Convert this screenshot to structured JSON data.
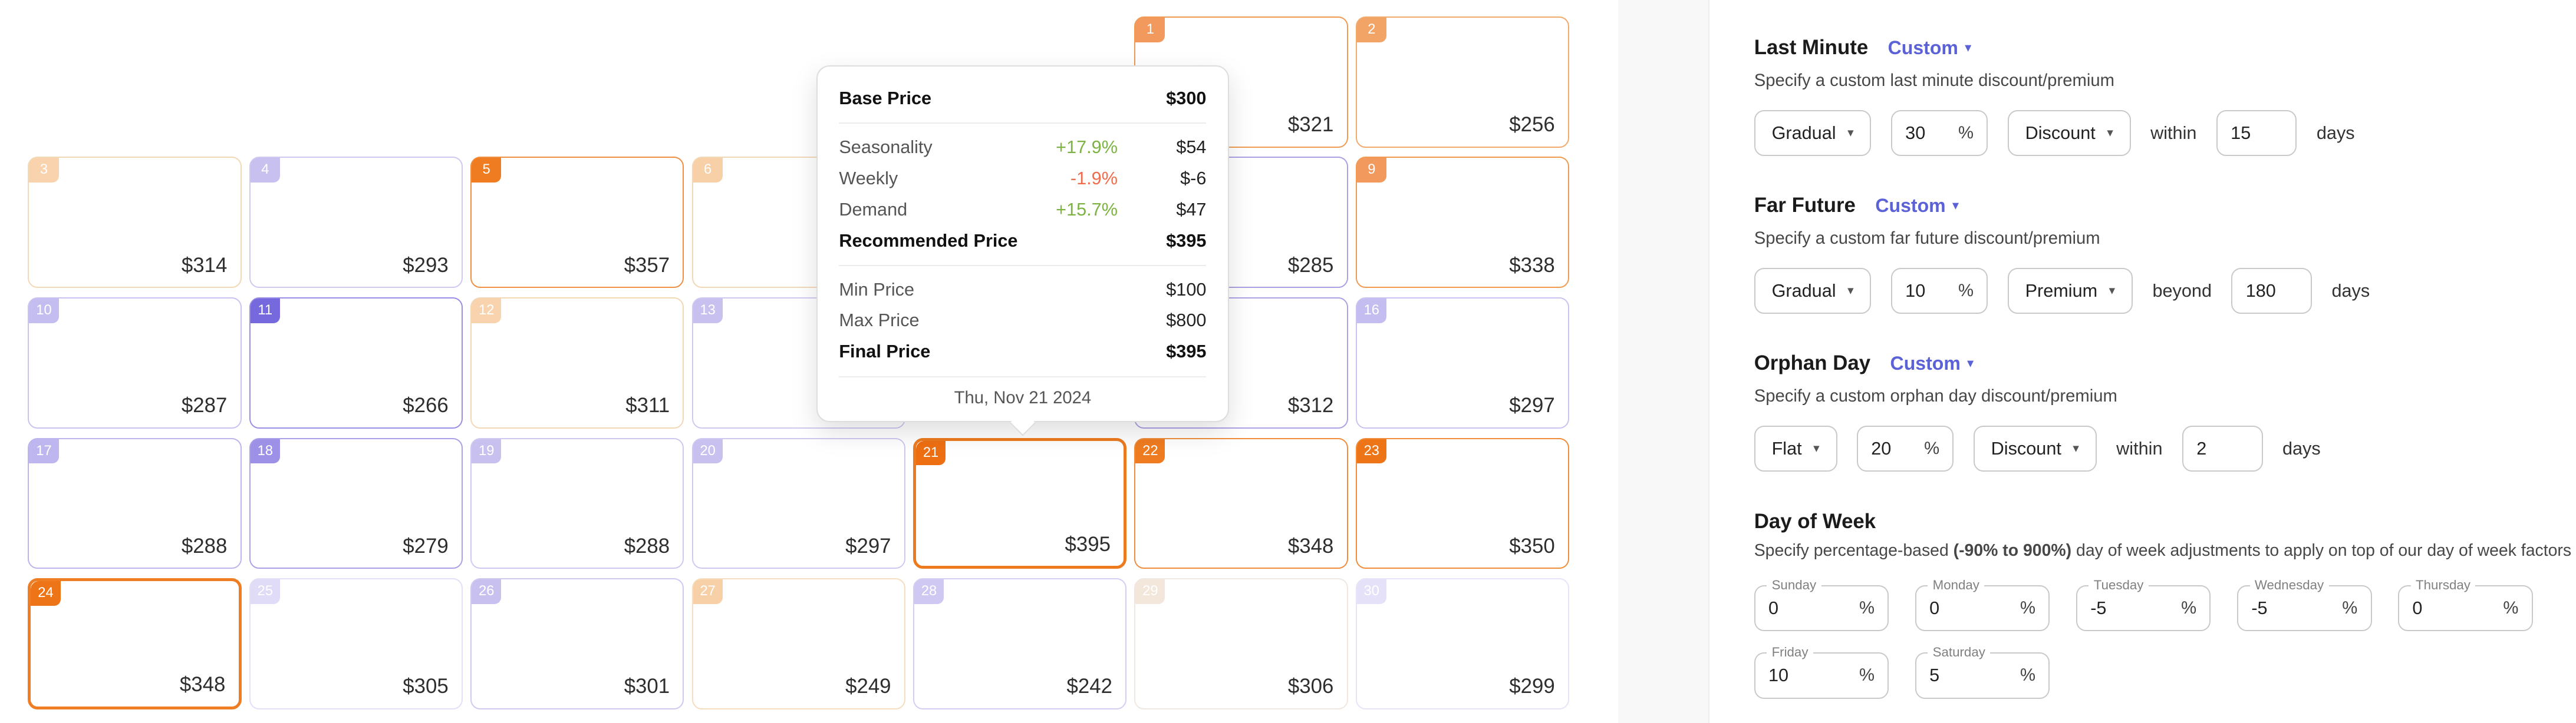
{
  "colors": {
    "accent": "#5b61d6",
    "positive": "#7cb342",
    "negative": "#ef6c4d",
    "price_text": "#2e2e2e",
    "panel_border": "#ececec",
    "control_border": "#c9c9c9"
  },
  "calendar": {
    "cells": [
      {
        "day": "1",
        "price": "$321",
        "row": 1,
        "col": 6,
        "badge": "#f2995d",
        "border": "#f09a52",
        "strong": false
      },
      {
        "day": "2",
        "price": "$256",
        "row": 1,
        "col": 7,
        "badge": "#f2a467",
        "border": "#f2a96c",
        "strong": false
      },
      {
        "day": "3",
        "price": "$314",
        "row": 2,
        "col": 1,
        "badge": "#f8d3ad",
        "border": "#f3d8b6",
        "strong": false
      },
      {
        "day": "4",
        "price": "$293",
        "row": 2,
        "col": 2,
        "badge": "#c8c1f0",
        "border": "#cfc9f2",
        "strong": false
      },
      {
        "day": "5",
        "price": "$357",
        "row": 2,
        "col": 3,
        "badge": "#ef7c20",
        "border": "#f08e41",
        "strong": false
      },
      {
        "day": "6",
        "price": "",
        "row": 2,
        "col": 4,
        "badge": "#f8d0a7",
        "border": "#f3d8b6",
        "strong": false
      },
      {
        "day": "8",
        "price": "$285",
        "row": 2,
        "col": 6,
        "badge": "#b3aae9",
        "border": "#a9a0e4",
        "strong": false
      },
      {
        "day": "9",
        "price": "$338",
        "row": 2,
        "col": 7,
        "badge": "#f2995d",
        "border": "#f09a52",
        "strong": false
      },
      {
        "day": "10",
        "price": "$287",
        "row": 3,
        "col": 1,
        "badge": "#c4bdef",
        "border": "#c9c3f1",
        "strong": false
      },
      {
        "day": "11",
        "price": "$266",
        "row": 3,
        "col": 2,
        "badge": "#7669dd",
        "border": "#998ee5",
        "strong": false
      },
      {
        "day": "12",
        "price": "$311",
        "row": 3,
        "col": 3,
        "badge": "#f8d3ad",
        "border": "#f3d8b6",
        "strong": false
      },
      {
        "day": "13",
        "price": "",
        "row": 3,
        "col": 4,
        "badge": "#c8c1f0",
        "border": "#cfc9f2",
        "strong": false
      },
      {
        "day": "15",
        "price": "$312",
        "row": 3,
        "col": 6,
        "badge": "#b3aae9",
        "border": "#aba2e5",
        "strong": false
      },
      {
        "day": "16",
        "price": "$297",
        "row": 3,
        "col": 7,
        "badge": "#c4bdef",
        "border": "#c9c3f1",
        "strong": false
      },
      {
        "day": "17",
        "price": "$288",
        "row": 4,
        "col": 1,
        "badge": "#beb6ee",
        "border": "#bcb4ec",
        "strong": false
      },
      {
        "day": "18",
        "price": "$279",
        "row": 4,
        "col": 2,
        "badge": "#9d91e7",
        "border": "#aaa0e8",
        "strong": false
      },
      {
        "day": "19",
        "price": "$288",
        "row": 4,
        "col": 3,
        "badge": "#c8c1f0",
        "border": "#cfc9f2",
        "strong": false
      },
      {
        "day": "20",
        "price": "$297",
        "row": 4,
        "col": 4,
        "badge": "#c8c1f0",
        "border": "#cfc9f2",
        "strong": false
      },
      {
        "day": "21",
        "price": "$395",
        "row": 4,
        "col": 5,
        "badge": "#ee6f12",
        "border": "#ee7a1e",
        "strong": true
      },
      {
        "day": "22",
        "price": "$348",
        "row": 4,
        "col": 6,
        "badge": "#ef7c20",
        "border": "#f08d3d",
        "strong": false
      },
      {
        "day": "23",
        "price": "$350",
        "row": 4,
        "col": 7,
        "badge": "#ee7517",
        "border": "#f08d3d",
        "strong": false
      },
      {
        "day": "24",
        "price": "$348",
        "row": 5,
        "col": 1,
        "badge": "#ee7517",
        "border": "#ee7d23",
        "strong": true
      },
      {
        "day": "25",
        "price": "$305",
        "row": 5,
        "col": 2,
        "badge": "#e0dbf7",
        "border": "#e3dff8",
        "strong": false
      },
      {
        "day": "26",
        "price": "$301",
        "row": 5,
        "col": 3,
        "badge": "#c8c1f0",
        "border": "#cfc9f2",
        "strong": false
      },
      {
        "day": "27",
        "price": "$249",
        "row": 5,
        "col": 4,
        "badge": "#f8d0a7",
        "border": "#f6ddbf",
        "strong": false
      },
      {
        "day": "28",
        "price": "$242",
        "row": 5,
        "col": 5,
        "badge": "#cec8f2",
        "border": "#d3cef4",
        "strong": false
      },
      {
        "day": "29",
        "price": "$306",
        "row": 5,
        "col": 6,
        "badge": "#f3e6db",
        "border": "#f0e7e0",
        "strong": false
      },
      {
        "day": "30",
        "price": "$299",
        "row": 5,
        "col": 7,
        "badge": "#e5e1f8",
        "border": "#e7e3f9",
        "strong": false
      }
    ]
  },
  "tooltip": {
    "base_price_label": "Base Price",
    "base_price": "$300",
    "adjustments": [
      {
        "label": "Seasonality",
        "percent": "+17.9%",
        "amount": "$54",
        "direction": "up"
      },
      {
        "label": "Weekly",
        "percent": "-1.9%",
        "amount": "$-6",
        "direction": "down"
      },
      {
        "label": "Demand",
        "percent": "+15.7%",
        "amount": "$47",
        "direction": "up"
      }
    ],
    "recommended_label": "Recommended Price",
    "recommended_price": "$395",
    "limits": [
      {
        "label": "Min Price",
        "value": "$100"
      },
      {
        "label": "Max Price",
        "value": "$800"
      }
    ],
    "final_label": "Final Price",
    "final_price": "$395",
    "date": "Thu, Nov 21 2024"
  },
  "panel": {
    "sections": [
      {
        "title": "Last Minute",
        "mode": "Custom",
        "description": "Specify a custom last minute discount/premium",
        "curve": "Gradual",
        "amount": "30",
        "unit": "%",
        "direction": "Discount",
        "preposition": "within",
        "days_value": "15",
        "days_label": "days"
      },
      {
        "title": "Far Future",
        "mode": "Custom",
        "description": "Specify a custom far future discount/premium",
        "curve": "Gradual",
        "amount": "10",
        "unit": "%",
        "direction": "Premium",
        "preposition": "beyond",
        "days_value": "180",
        "days_label": "days"
      },
      {
        "title": "Orphan Day",
        "mode": "Custom",
        "description": "Specify a custom orphan day discount/premium",
        "curve": "Flat",
        "amount": "20",
        "unit": "%",
        "direction": "Discount",
        "preposition": "within",
        "days_value": "2",
        "days_label": "days"
      }
    ],
    "day_of_week": {
      "title": "Day of Week",
      "desc_prefix": "Specify percentage-based ",
      "desc_bold": "(-90% to 900%)",
      "desc_suffix": " day of week adjustments to apply on top of our day of week factors",
      "unit": "%",
      "days": [
        {
          "label": "Sunday",
          "value": "0"
        },
        {
          "label": "Monday",
          "value": "0"
        },
        {
          "label": "Tuesday",
          "value": "-5"
        },
        {
          "label": "Wednesday",
          "value": "-5"
        },
        {
          "label": "Thursday",
          "value": "0"
        },
        {
          "label": "Friday",
          "value": "10"
        },
        {
          "label": "Saturday",
          "value": "5"
        }
      ]
    }
  }
}
